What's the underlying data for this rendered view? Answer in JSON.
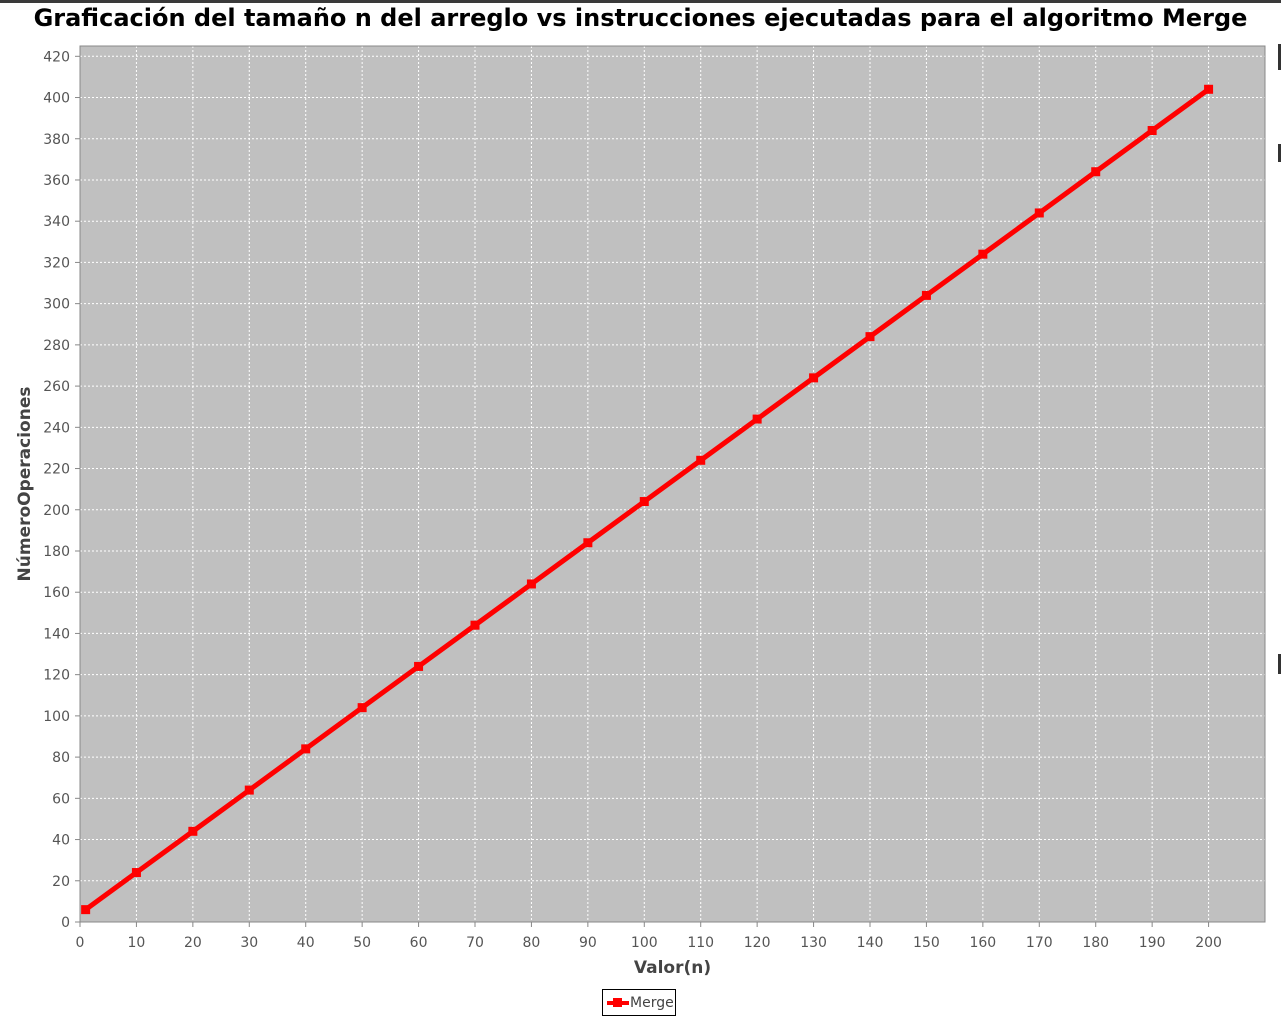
{
  "chart_data": {
    "type": "line",
    "title": "Graficación del tamaño n del arreglo vs instrucciones ejecutadas para el algoritmo Merge",
    "xlabel": "Valor(n)",
    "ylabel": "NúmeroOperaciones",
    "xlim": [
      0,
      210
    ],
    "ylim": [
      0,
      425
    ],
    "xticks": [
      0,
      10,
      20,
      30,
      40,
      50,
      60,
      70,
      80,
      90,
      100,
      110,
      120,
      130,
      140,
      150,
      160,
      170,
      180,
      190,
      200
    ],
    "yticks": [
      0,
      20,
      40,
      60,
      80,
      100,
      120,
      140,
      160,
      180,
      200,
      220,
      240,
      260,
      280,
      300,
      320,
      340,
      360,
      380,
      400,
      420
    ],
    "grid": true,
    "legend_position": "bottom-center",
    "background_color": "#c0c0c0",
    "series": [
      {
        "name": "Merge",
        "color": "#ff0000",
        "marker": "square",
        "x": [
          1,
          10,
          20,
          30,
          40,
          50,
          60,
          70,
          80,
          90,
          100,
          110,
          120,
          130,
          140,
          150,
          160,
          170,
          180,
          190,
          200
        ],
        "y": [
          6,
          24,
          44,
          64,
          84,
          104,
          124,
          144,
          164,
          184,
          204,
          224,
          244,
          264,
          284,
          304,
          324,
          344,
          364,
          384,
          404
        ]
      }
    ]
  }
}
